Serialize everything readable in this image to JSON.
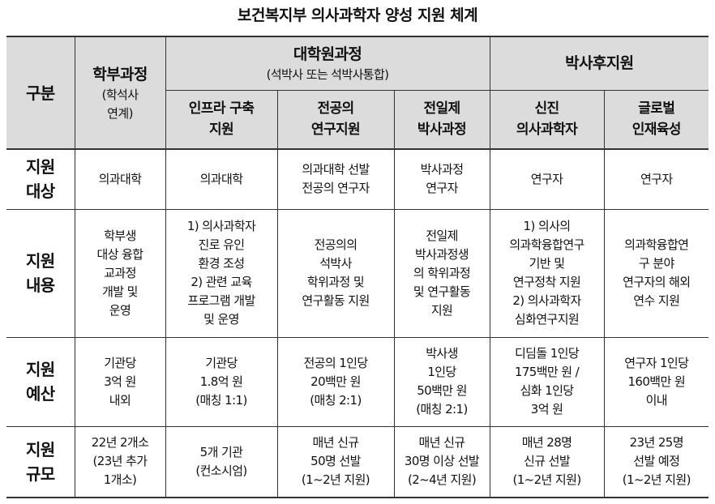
{
  "title": "보건복지부 의사과학자 양성 지원 체계",
  "header": {
    "category": "구분",
    "undergrad": {
      "label": "학부과정",
      "sub": "(학석사\n연계)"
    },
    "graduate": {
      "label": "대학원과정",
      "sub": "(석박사 또는 석박사통합)"
    },
    "postdoc": {
      "label": "박사후지원"
    },
    "columns": [
      "인프라 구축\n지원",
      "전공의\n연구지원",
      "전일제\n박사과정",
      "신진\n의사과학자",
      "글로벌\n인재육성"
    ]
  },
  "rows": [
    {
      "label": "지원\n대상",
      "cells": [
        "의과대학",
        "의과대학",
        "의과대학 선발\n전공의 연구자",
        "박사과정\n연구자",
        "연구자",
        "연구자"
      ]
    },
    {
      "label": "지원\n내용",
      "cells": [
        "학부생\n대상 융합\n교과정\n개발 및\n운영",
        "1) 의사과학자\n진로 유인\n환경 조성\n2) 관련 교육\n프로그램 개발\n및 운영",
        "전공의의\n석박사\n학위과정 및\n연구활동 지원",
        "전일제\n박사과정생\n의 학위과정\n및 연구활동\n지원",
        "1) 의사의\n의과학융합연구\n기반 및\n연구정착 지원\n2) 의사과학자\n심화연구지원",
        "의과학융합연\n구 분야\n연구자의 해외\n연수 지원"
      ]
    },
    {
      "label": "지원\n예산",
      "cells": [
        "기관당\n3억 원\n내외",
        "기관당\n1.8억 원\n(매칭 1:1)",
        "전공의 1인당\n20백만 원\n(매칭 2:1)",
        "박사생\n1인당\n50백만 원\n(매칭 2:1)",
        "디딤돌 1인당\n175백만 원 /\n심화 1인당\n3억 원",
        "연구자 1인당\n160백만 원\n이내"
      ]
    },
    {
      "label": "지원\n규모",
      "cells": [
        "22년 2개소\n(23년 추가\n1개소)",
        "5개 기관\n(컨소시엄)",
        "매년 신규\n50명 선발\n(1~2년 지원)",
        "매년 신규\n30명 이상 선발\n(2~4년 지원)",
        "매년 28명\n신규 선발\n(1~2년 지원)",
        "23년 25명\n선발 예정\n(1~2년 지원)"
      ]
    }
  ]
}
